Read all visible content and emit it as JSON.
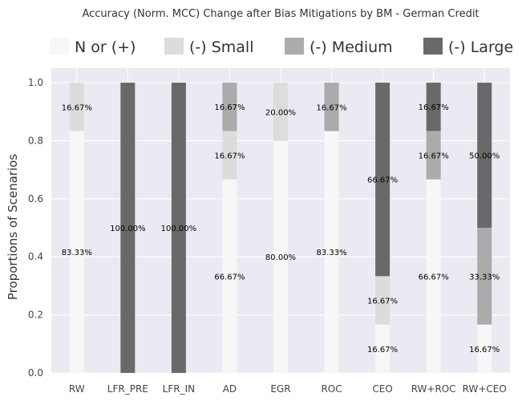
{
  "chart_data": {
    "type": "bar",
    "stacked": true,
    "title": "Accuracy (Norm. MCC) Change after Bias Mitigations by BM - German Credit",
    "xlabel": "",
    "ylabel": "Proportions of Scenarios",
    "ylim": [
      0,
      1.05
    ],
    "yticks": [
      "0.0",
      "0.2",
      "0.4",
      "0.6",
      "0.8",
      "1.0"
    ],
    "grid": true,
    "legend_position": "top",
    "categories": [
      "RW",
      "LFR_PRE",
      "LFR_IN",
      "AD",
      "EGR",
      "ROC",
      "CEO",
      "RW+ROC",
      "RW+CEO"
    ],
    "series": [
      {
        "name": "N or (+)",
        "color": "#f7f7f7",
        "values": [
          0.8333,
          0,
          0,
          0.6667,
          0.8,
          0.8333,
          0.1667,
          0.6667,
          0.1667
        ],
        "labels": [
          "83.33%",
          "",
          "",
          "66.67%",
          "80.00%",
          "83.33%",
          "16.67%",
          "66.67%",
          "16.67%"
        ]
      },
      {
        "name": "(-) Small",
        "color": "#dcdcdc",
        "values": [
          0.1667,
          0,
          0,
          0.1667,
          0.2,
          0,
          0.1667,
          0,
          0
        ],
        "labels": [
          "16.67%",
          "",
          "",
          "16.67%",
          "20.00%",
          "",
          "16.67%",
          "",
          ""
        ]
      },
      {
        "name": "(-) Medium",
        "color": "#ababab",
        "values": [
          0,
          0,
          0,
          0.1667,
          0,
          0.1667,
          0,
          0.1667,
          0.3333
        ],
        "labels": [
          "",
          "",
          "",
          "16.67%",
          "",
          "16.67%",
          "",
          "16.67%",
          "33.33%"
        ]
      },
      {
        "name": "(-) Large",
        "color": "#696969",
        "values": [
          0,
          1.0,
          1.0,
          0,
          0,
          0,
          0.6667,
          0.1667,
          0.5
        ],
        "labels": [
          "",
          "100.00%",
          "100.00%",
          "",
          "",
          "",
          "66.67%",
          "16.67%",
          "50.00%"
        ]
      }
    ]
  },
  "style": {
    "plot_bg": "#eaeaf2",
    "grid_color": "#ffffff"
  }
}
